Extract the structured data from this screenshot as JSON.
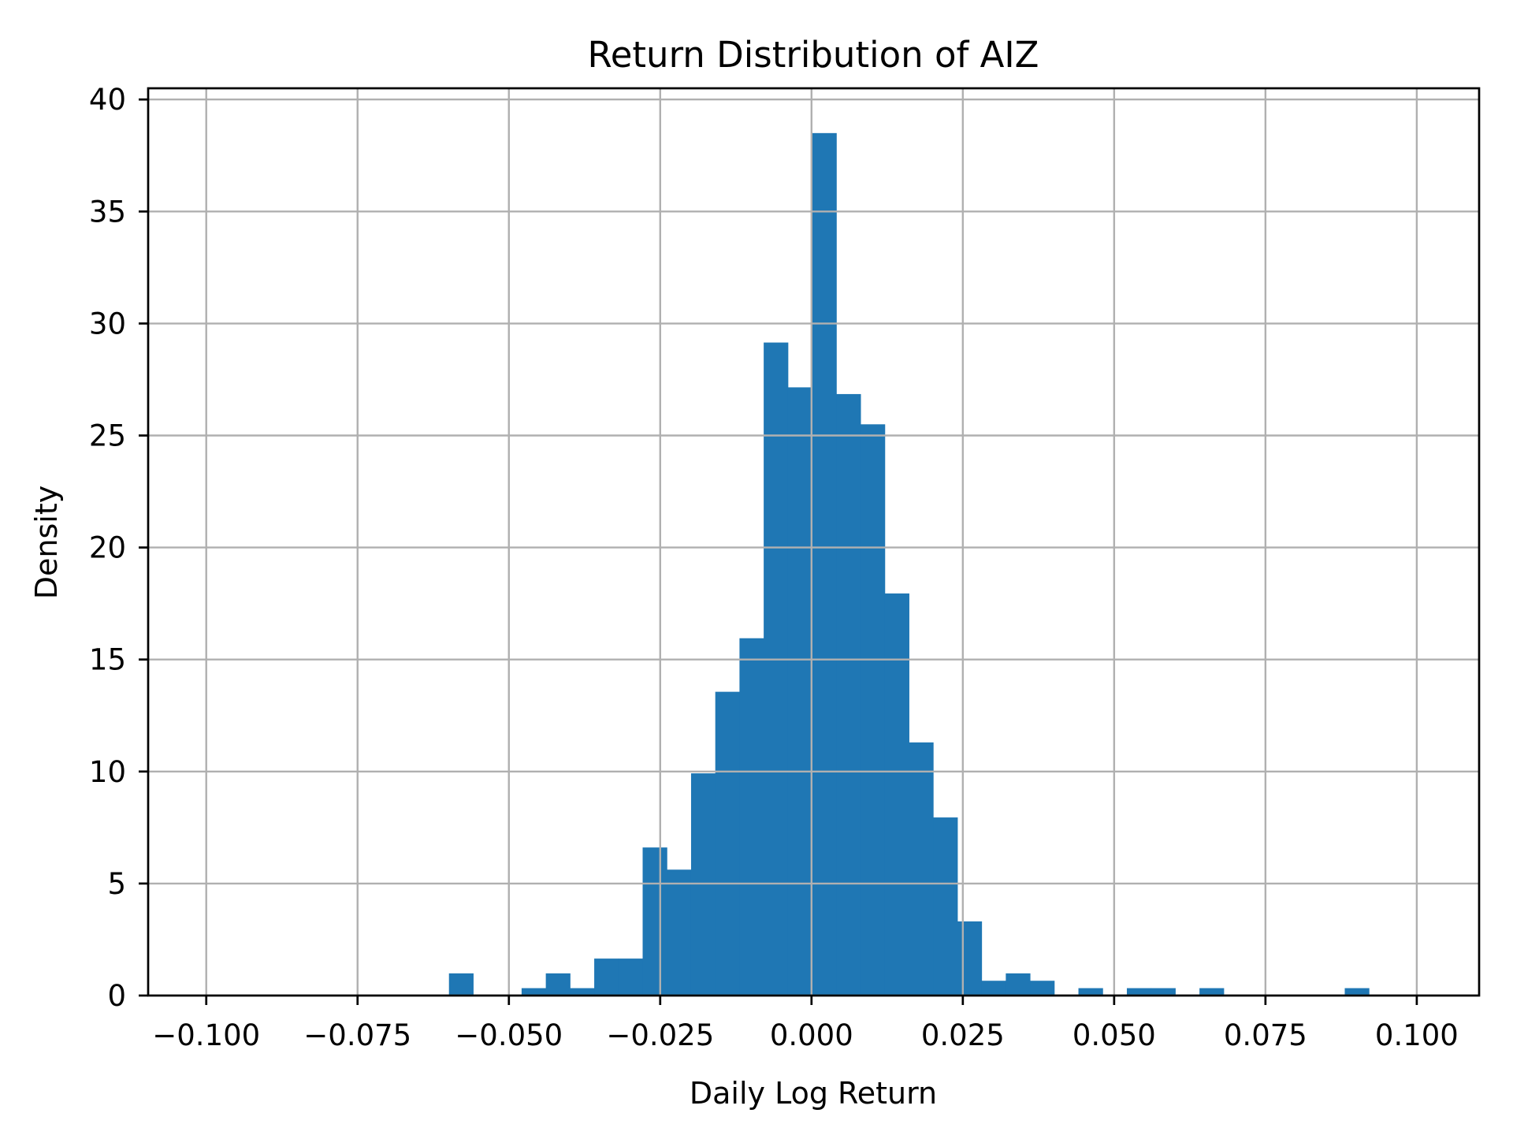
{
  "figure": {
    "background": "#ffffff"
  },
  "chart_data": {
    "type": "bar",
    "subtype": "histogram",
    "title": "Return Distribution of AIZ",
    "xlabel": "Daily Log Return",
    "ylabel": "Density",
    "bin_start": -0.0599,
    "bin_width": 0.004,
    "densities": [
      0.99,
      0,
      0,
      0.33,
      0.99,
      0.33,
      1.65,
      1.65,
      6.61,
      5.62,
      9.92,
      13.56,
      15.95,
      29.15,
      27.15,
      38.5,
      26.85,
      25.5,
      17.95,
      11.3,
      7.95,
      3.31,
      0.66,
      0.99,
      0.66,
      0,
      0.33,
      0,
      0.33,
      0.33,
      0,
      0.33,
      0,
      0,
      0,
      0,
      0,
      0.33
    ],
    "xlim": [
      -0.1096,
      0.1103
    ],
    "ylim": [
      0,
      40.5
    ],
    "xticks": [
      -0.1,
      -0.075,
      -0.05,
      -0.025,
      0.0,
      0.025,
      0.05,
      0.075,
      0.1
    ],
    "xtick_labels": [
      "−0.100",
      "−0.075",
      "−0.050",
      "−0.025",
      "0.000",
      "0.025",
      "0.050",
      "0.075",
      "0.100"
    ],
    "yticks": [
      0,
      5,
      10,
      15,
      20,
      25,
      30,
      35,
      40
    ],
    "ytick_labels": [
      "0",
      "5",
      "10",
      "15",
      "20",
      "25",
      "30",
      "35",
      "40"
    ],
    "grid": true,
    "grid_on_top_of_bars": true,
    "legend_position": "none",
    "bar_color": "#1f77b4",
    "grid_color": "#b0b0b0",
    "axis_color": "#000000"
  }
}
